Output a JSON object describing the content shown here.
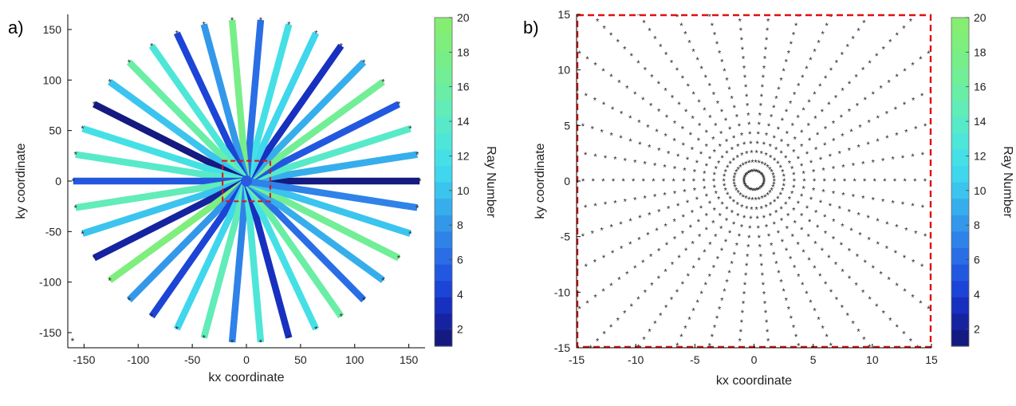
{
  "chart_data": [
    {
      "panel_label": "a)",
      "type": "scatter",
      "description_type": "radial k-space trajectory",
      "xlabel": "kx coordinate",
      "ylabel": "ky coordinate",
      "xlim": [
        -165,
        165
      ],
      "ylim": [
        -165,
        165
      ],
      "xticks": [
        "-150",
        "-100",
        "-50",
        "0",
        "50",
        "100",
        "150"
      ],
      "xtick_values": [
        -150,
        -100,
        -50,
        0,
        50,
        100,
        150
      ],
      "yticks": [
        "150",
        "100",
        "50",
        "0",
        "-50",
        "-100",
        "-150"
      ],
      "ytick_values": [
        150,
        100,
        50,
        0,
        -50,
        -100,
        -150
      ],
      "num_spokes": 38,
      "kmax": 160,
      "spoke_ray_numbers": [
        1,
        9,
        14,
        5,
        17,
        9,
        3,
        11,
        12,
        6,
        18,
        8,
        4,
        13,
        16,
        10,
        1,
        12,
        14,
        5,
        15,
        10,
        2,
        19,
        8,
        4,
        11,
        15,
        7,
        13,
        3,
        12,
        16,
        6,
        9,
        17,
        10,
        7
      ],
      "zoom_box": {
        "x": [
          -22,
          22
        ],
        "y": [
          -20,
          20
        ]
      },
      "colorbar": {
        "label": "Ray Number",
        "min": 1,
        "max": 20,
        "levels": 20,
        "ticks": [
          "20",
          "18",
          "16",
          "14",
          "12",
          "10",
          "8",
          "6",
          "4",
          "2"
        ],
        "tick_values": [
          20,
          18,
          16,
          14,
          12,
          10,
          8,
          6,
          4,
          2
        ],
        "colors": [
          "#141a80",
          "#1623a0",
          "#1830bf",
          "#1c44d6",
          "#2258e0",
          "#2a6ee6",
          "#2f82e8",
          "#3398ea",
          "#37aeec",
          "#3bc4ee",
          "#3fd6ee",
          "#45e0e6",
          "#4ee6d8",
          "#58eac8",
          "#62ecb8",
          "#6aeea6",
          "#72ee96",
          "#78ee88",
          "#7eee7c",
          "#84ee72"
        ]
      }
    },
    {
      "panel_label": "b)",
      "type": "scatter",
      "description_type": "zoom of central region of radial trajectory",
      "xlabel": "kx coordinate",
      "ylabel": "ky coordinate",
      "xlim": [
        -15,
        15
      ],
      "ylim": [
        -15,
        15
      ],
      "xticks": [
        "-15",
        "-10",
        "-5",
        "0",
        "5",
        "10",
        "15"
      ],
      "xtick_values": [
        -15,
        -10,
        -5,
        0,
        5,
        10,
        15
      ],
      "yticks": [
        "15",
        "10",
        "5",
        "0",
        "-5",
        "-10",
        "-15"
      ],
      "ytick_values": [
        15,
        10,
        5,
        0,
        -5,
        -10,
        -15
      ],
      "marker": "*",
      "sample_spacing": 0.85,
      "zoom_box": {
        "x": [
          -15,
          15
        ],
        "y": [
          -15,
          15
        ]
      },
      "colorbar": {
        "label": "Ray Number",
        "min": 1,
        "max": 20,
        "ticks": [
          "20",
          "18",
          "16",
          "14",
          "12",
          "10",
          "8",
          "6",
          "4",
          "2"
        ],
        "tick_values": [
          20,
          18,
          16,
          14,
          12,
          10,
          8,
          6,
          4,
          2
        ]
      }
    }
  ]
}
